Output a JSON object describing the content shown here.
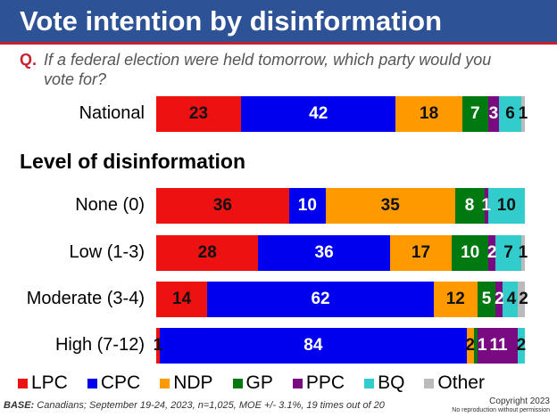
{
  "header": {
    "title": "Vote intention by disinformation"
  },
  "question": {
    "label": "Q.",
    "text": "If a federal election were held tomorrow, which party would you vote for?"
  },
  "subheading": "Level of disinformation",
  "chart_data": {
    "type": "bar",
    "orientation": "horizontal-stacked-100",
    "categories": [
      "National",
      "None (0)",
      "Low (1-3)",
      "Moderate (3-4)",
      "High (7-12)"
    ],
    "series": [
      {
        "name": "LPC",
        "color": "#EE1111",
        "values": [
          23,
          36,
          28,
          14,
          1
        ]
      },
      {
        "name": "CPC",
        "color": "#0000EE",
        "values": [
          42,
          10,
          36,
          62,
          84
        ]
      },
      {
        "name": "NDP",
        "color": "#FF9900",
        "values": [
          18,
          35,
          17,
          12,
          2
        ]
      },
      {
        "name": "GP",
        "color": "#007A10",
        "values": [
          7,
          8,
          10,
          5,
          1
        ]
      },
      {
        "name": "PPC",
        "color": "#7A0A82",
        "values": [
          3,
          1,
          2,
          2,
          11
        ]
      },
      {
        "name": "BQ",
        "color": "#33CCCC",
        "values": [
          6,
          10,
          7,
          4,
          2
        ]
      },
      {
        "name": "Other",
        "color": "#BBBBBB",
        "values": [
          1,
          0,
          1,
          2,
          0
        ]
      }
    ],
    "legend_position": "bottom",
    "grid": false
  },
  "footer": {
    "base_label": "BASE:",
    "base_text": " Canadians; September 19-24, 2023, n=1,025, MOE +/- 3.1%, 19 times out of 20",
    "copyright": "Copyright 2023",
    "notice": "No reproduction without permission"
  }
}
